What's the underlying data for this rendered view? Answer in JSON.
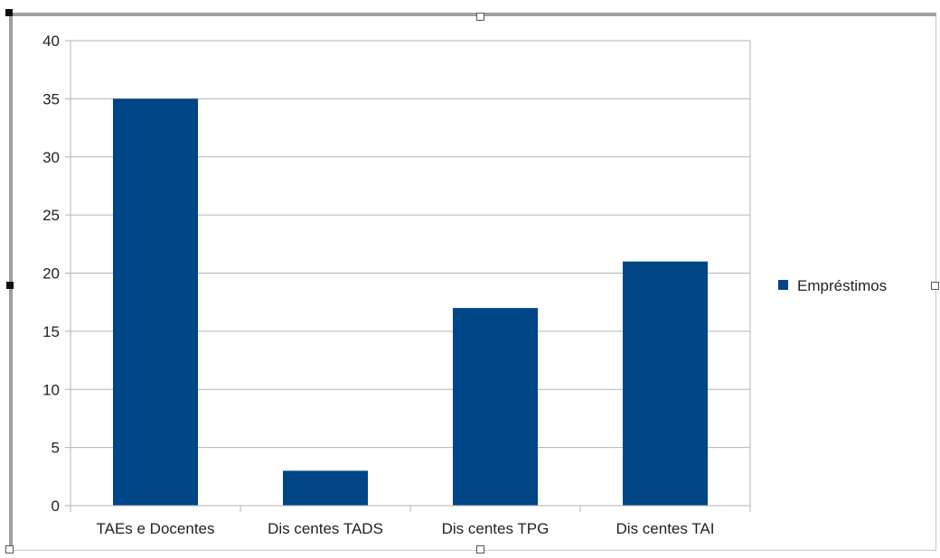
{
  "chart_data": {
    "type": "bar",
    "categories": [
      "TAEs e Docentes",
      "Dis centes TADS",
      "Dis centes TPG",
      "Dis centes TAI"
    ],
    "series": [
      {
        "name": "Empréstimos",
        "values": [
          35,
          3,
          17,
          21
        ],
        "color": "#004586"
      }
    ],
    "ylim": [
      0,
      40
    ],
    "yticks": [
      0,
      5,
      10,
      15,
      20,
      25,
      30,
      35,
      40
    ],
    "grid": true,
    "legend_position": "right"
  }
}
